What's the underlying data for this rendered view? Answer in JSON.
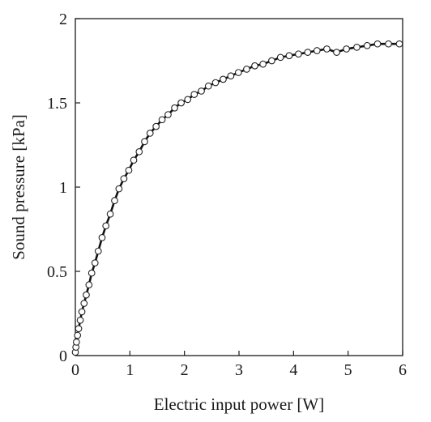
{
  "chart_data": {
    "type": "scatter",
    "xlabel": "Electric input power [W]",
    "ylabel": "Sound pressure [kPa]",
    "xlim": [
      0,
      6
    ],
    "ylim": [
      0,
      2
    ],
    "xticks": [
      0,
      1,
      2,
      3,
      4,
      5,
      6
    ],
    "yticks": [
      0,
      0.5,
      1,
      1.5,
      2
    ],
    "ytick_labels": [
      "0",
      "0.5",
      "1",
      "1.5",
      "2"
    ],
    "grid": false,
    "marker": "open-circle",
    "line": "smooth fit curve through points",
    "series": [
      {
        "x": [
          0.0,
          0.01,
          0.02,
          0.04,
          0.06,
          0.09,
          0.12,
          0.16,
          0.2,
          0.25,
          0.3,
          0.36,
          0.42,
          0.49,
          0.56,
          0.64,
          0.72,
          0.8,
          0.89,
          0.98,
          1.07,
          1.17,
          1.27,
          1.37,
          1.48,
          1.59,
          1.7,
          1.82,
          1.94,
          2.06,
          2.18,
          2.31,
          2.44,
          2.57,
          2.71,
          2.85,
          2.99,
          3.14,
          3.29,
          3.44,
          3.6,
          3.76,
          3.92,
          4.09,
          4.26,
          4.43,
          4.61,
          4.79,
          4.97,
          5.16,
          5.35,
          5.54,
          5.74,
          5.94
        ],
        "y": [
          0.02,
          0.05,
          0.08,
          0.12,
          0.16,
          0.21,
          0.26,
          0.31,
          0.36,
          0.42,
          0.49,
          0.55,
          0.62,
          0.7,
          0.77,
          0.84,
          0.92,
          0.99,
          1.05,
          1.1,
          1.16,
          1.21,
          1.27,
          1.32,
          1.36,
          1.4,
          1.43,
          1.47,
          1.5,
          1.52,
          1.55,
          1.57,
          1.6,
          1.62,
          1.64,
          1.66,
          1.68,
          1.7,
          1.72,
          1.73,
          1.75,
          1.77,
          1.78,
          1.79,
          1.8,
          1.81,
          1.82,
          1.8,
          1.82,
          1.83,
          1.84,
          1.85,
          1.85,
          1.85
        ]
      }
    ]
  }
}
